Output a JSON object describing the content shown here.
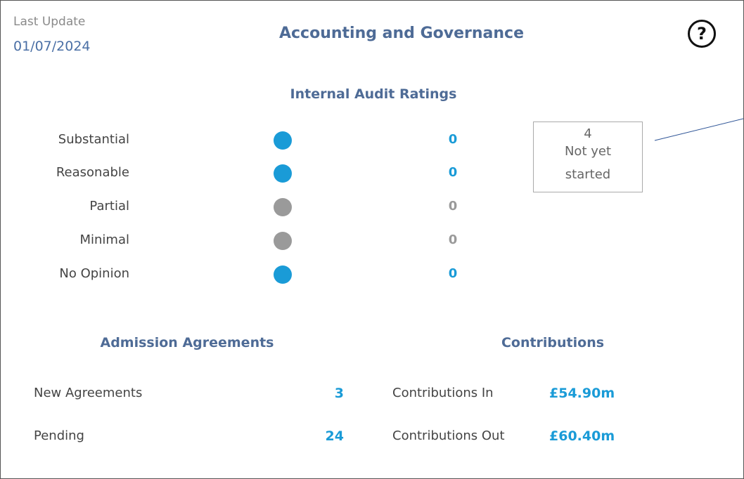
{
  "header": {
    "last_update_label": "Last Update",
    "last_update_date": "01/07/2024",
    "title": "Accounting and Governance",
    "help": "?"
  },
  "internal_audit": {
    "title": "Internal Audit Ratings",
    "rows": [
      {
        "label": "Substantial",
        "value": 0,
        "color": "#1a9bd7"
      },
      {
        "label": "Reasonable",
        "value": 0,
        "color": "#1a9bd7"
      },
      {
        "label": "Partial",
        "value": 0,
        "color": "#9a9a9a"
      },
      {
        "label": "Minimal",
        "value": 0,
        "color": "#9a9a9a"
      },
      {
        "label": "No Opinion",
        "value": 0,
        "color": "#1a9bd7"
      }
    ],
    "note": {
      "count": 4,
      "text": "Not yet started"
    }
  },
  "admission": {
    "title": "Admission Agreements",
    "rows": [
      {
        "label": "New Agreements",
        "value": 3
      },
      {
        "label": "Pending",
        "value": 24
      }
    ]
  },
  "contributions": {
    "title": "Contributions",
    "rows": [
      {
        "label": "Contributions In",
        "value": "£54.90m"
      },
      {
        "label": "Contributions Out",
        "value": "£60.40m"
      }
    ]
  }
}
